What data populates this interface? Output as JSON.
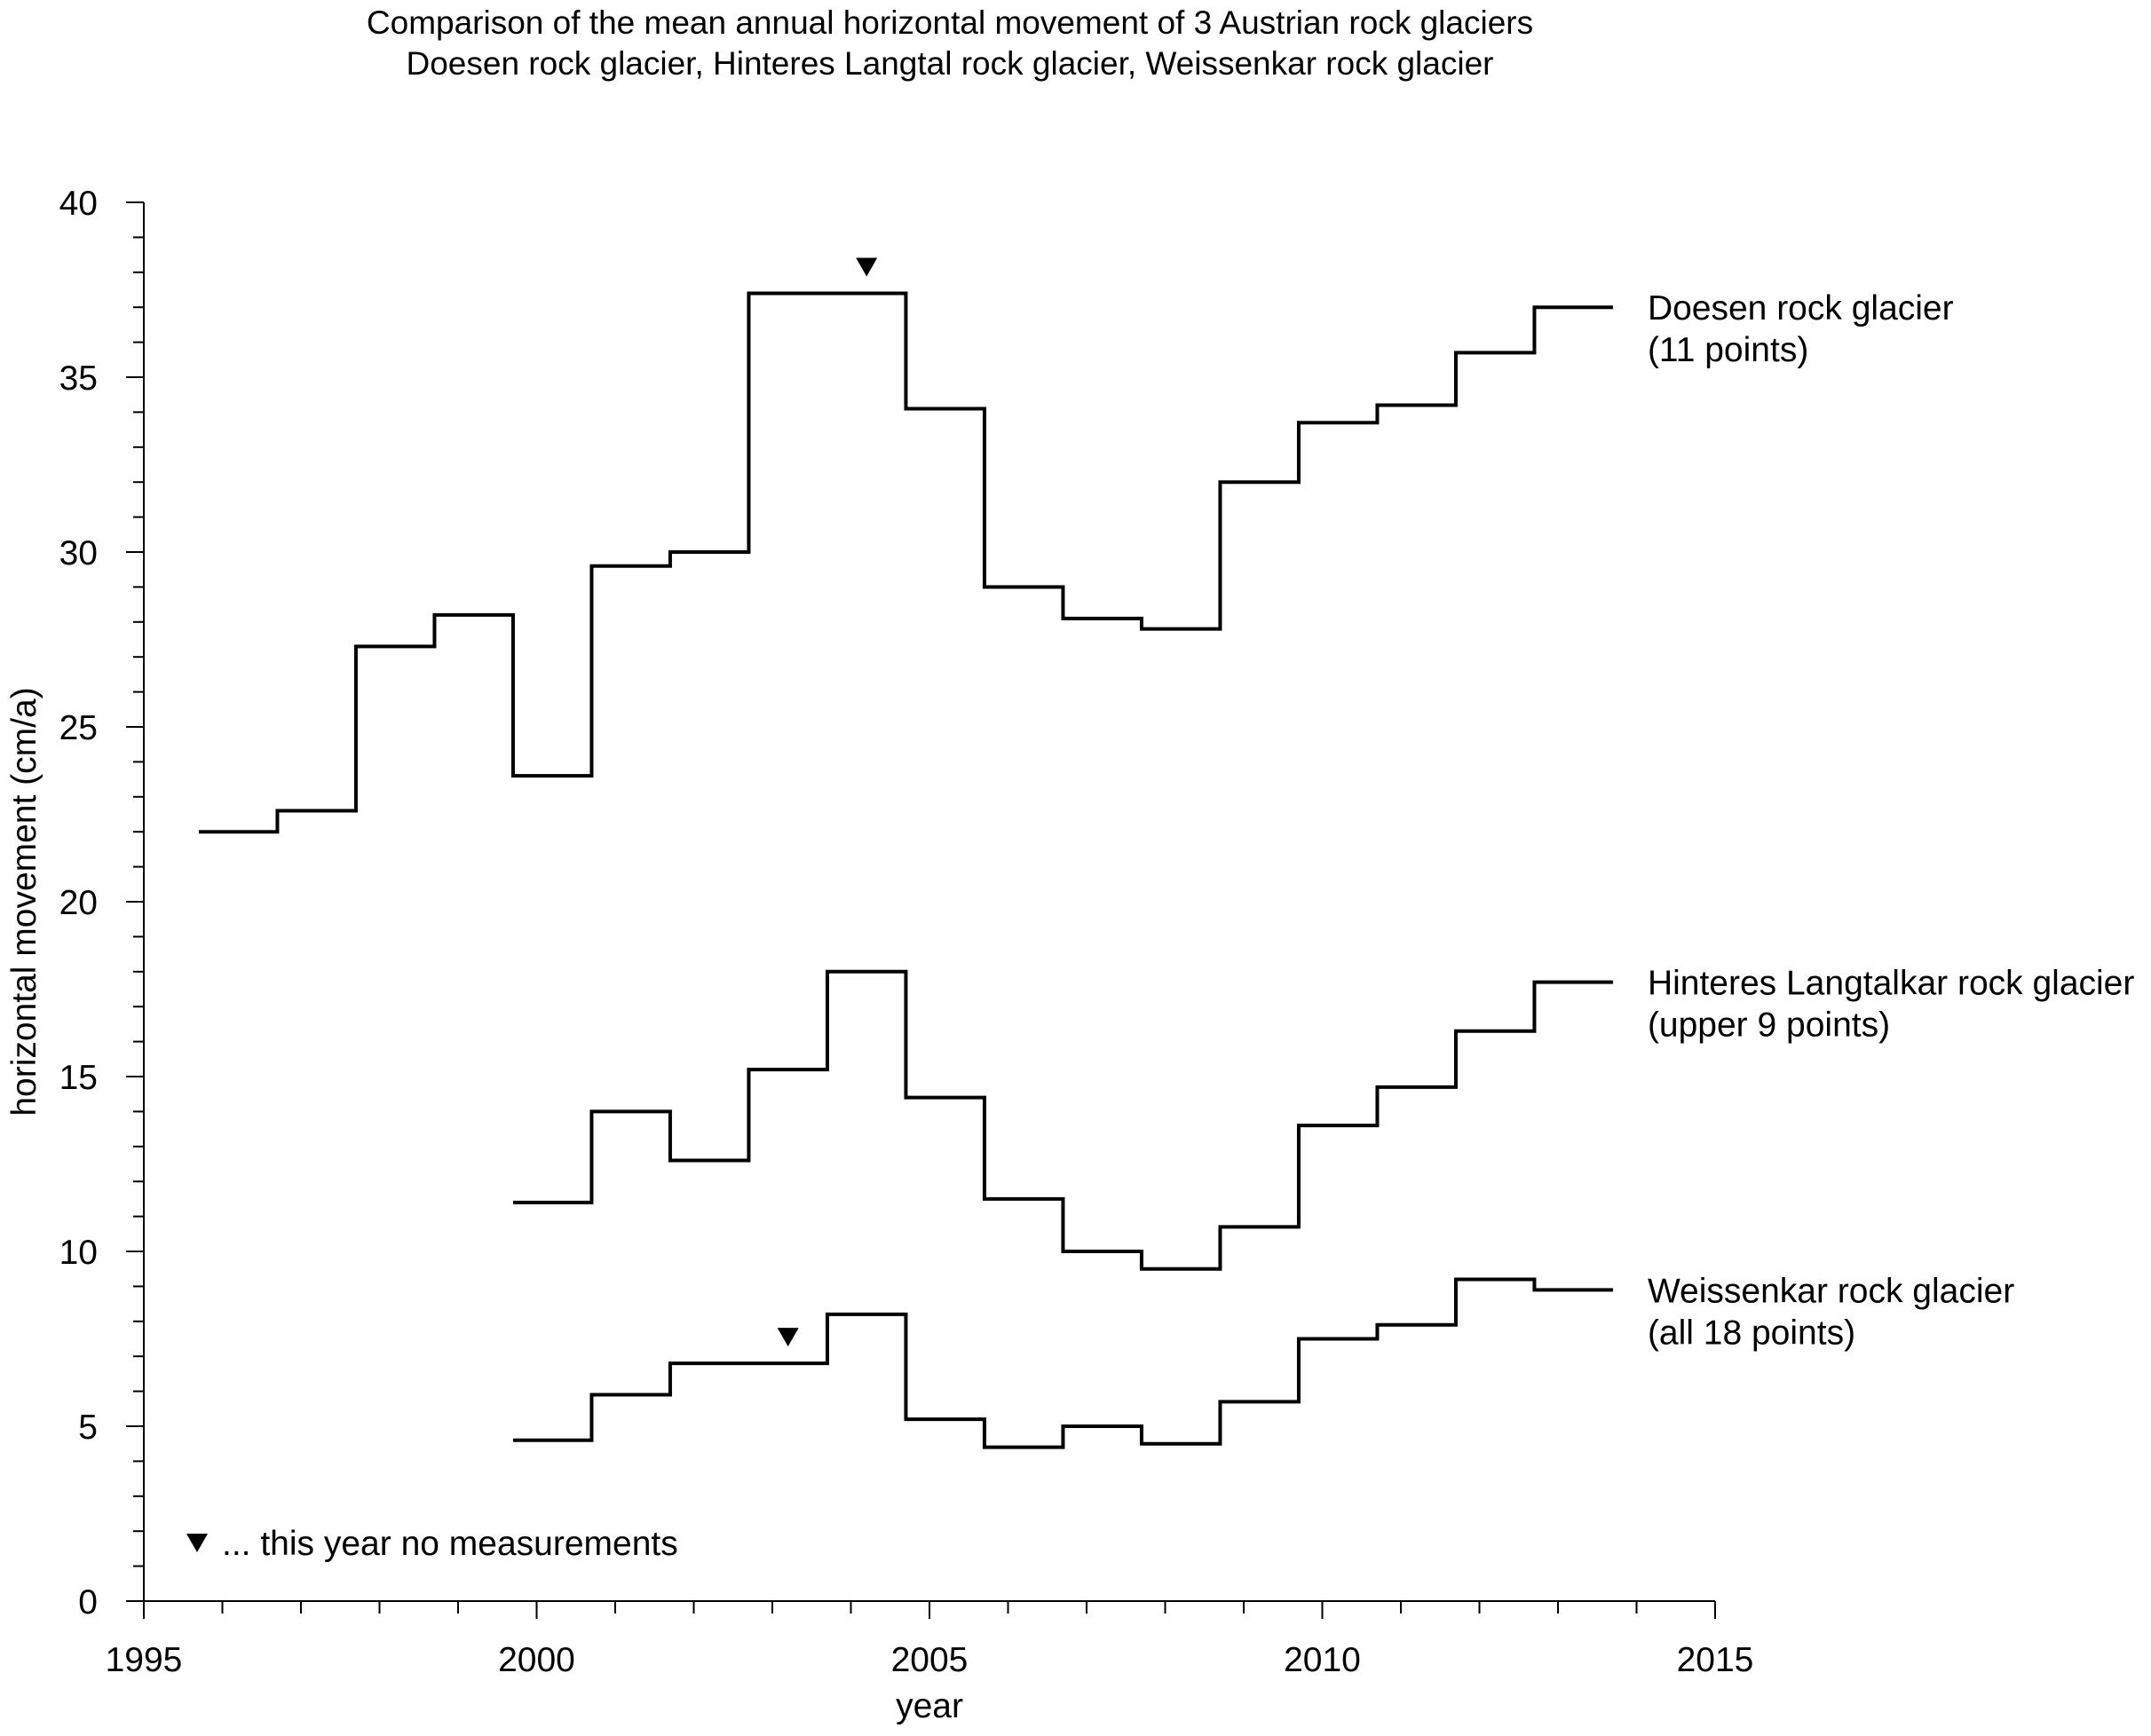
{
  "chart_data": {
    "type": "line",
    "step": true,
    "title_lines": [
      "Comparison of the mean annual horizontal movement of 3 Austrian rock glaciers",
      "Doesen rock glacier, Hinteres Langtal rock glacier, Weissenkar rock glacier"
    ],
    "xlabel": "year",
    "ylabel": "horizontal movement (cm/a)",
    "xlim": [
      1995,
      2015
    ],
    "ylim": [
      0,
      40
    ],
    "x_ticks": [
      "1995",
      "2000",
      "2005",
      "2010",
      "2015"
    ],
    "y_ticks": [
      "0",
      "5",
      "10",
      "15",
      "20",
      "25",
      "30",
      "35",
      "40"
    ],
    "series": [
      {
        "label_lines": [
          "Doesen rock glacier",
          "(11 points)"
        ],
        "x": [
          1995.7,
          1996.7,
          1997.7,
          1998.7,
          1999.7,
          2000.7,
          2001.7,
          2002.7,
          2003.7,
          2004.7,
          2005.7,
          2006.7,
          2007.7,
          2008.7,
          2009.7,
          2010.7,
          2011.7,
          2012.7
        ],
        "values": [
          22.0,
          22.6,
          27.3,
          28.2,
          23.6,
          29.6,
          30.0,
          37.4,
          37.4,
          34.1,
          29.0,
          28.1,
          27.8,
          32.0,
          33.7,
          34.2,
          35.7,
          37.0
        ],
        "end_x": 2013.7,
        "no_measurement_years": [
          2003.7
        ]
      },
      {
        "label_lines": [
          "Hinteres Langtalkar rock glacier",
          "(upper 9 points)"
        ],
        "x": [
          1999.7,
          2000.7,
          2001.7,
          2002.7,
          2003.7,
          2004.7,
          2005.7,
          2006.7,
          2007.7,
          2008.7,
          2009.7,
          2010.7,
          2011.7,
          2012.7
        ],
        "values": [
          11.4,
          14.0,
          12.6,
          15.2,
          18.0,
          14.4,
          11.5,
          10.0,
          9.5,
          10.7,
          13.6,
          14.7,
          16.3,
          17.7
        ],
        "end_x": 2013.7,
        "no_measurement_years": []
      },
      {
        "label_lines": [
          "Weissenkar rock glacier",
          "(all 18 points)"
        ],
        "x": [
          1999.7,
          2000.7,
          2001.7,
          2002.7,
          2003.7,
          2004.7,
          2005.7,
          2006.7,
          2007.7,
          2008.7,
          2009.7,
          2010.7,
          2011.7,
          2012.7
        ],
        "values": [
          4.6,
          5.9,
          6.8,
          6.8,
          8.2,
          5.2,
          4.4,
          5.0,
          4.5,
          5.7,
          7.5,
          7.9,
          9.2,
          8.9
        ],
        "end_x": 2013.7,
        "no_measurement_years": [
          2002.7
        ]
      }
    ],
    "annotation": "... this year no measurements",
    "colors": {
      "line": "#000000",
      "axis": "#000000",
      "background": "#ffffff"
    },
    "grid": false
  }
}
